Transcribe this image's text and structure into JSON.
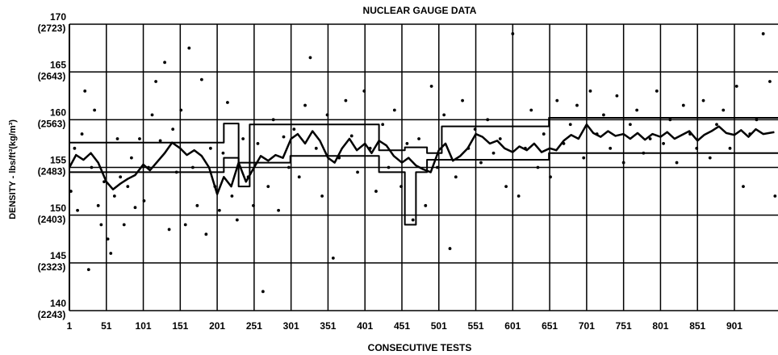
{
  "chart_data": {
    "type": "scatter",
    "title": "NUCLEAR GAUGE DATA",
    "xlabel": "CONSECUTIVE TESTS",
    "ylabel": "DENSITY - lbs/ft³(kg/m³)",
    "xlim": [
      1,
      960
    ],
    "ylim": [
      140,
      170
    ],
    "xticks": [
      1,
      51,
      101,
      151,
      201,
      251,
      301,
      351,
      401,
      451,
      501,
      551,
      601,
      651,
      701,
      751,
      801,
      851,
      901
    ],
    "yticks": [
      140,
      145,
      150,
      155,
      160,
      165,
      170
    ],
    "ytick_sublabels": [
      "(2243)",
      "(2323)",
      "(2403)",
      "(2483)",
      "(2563)",
      "(2643)",
      "(2723)"
    ],
    "grid": true,
    "series": [
      {
        "type": "scatter",
        "color": "#000000",
        "x": [
          3,
          8,
          12,
          18,
          22,
          27,
          31,
          35,
          40,
          44,
          48,
          53,
          57,
          62,
          66,
          70,
          75,
          80,
          85,
          90,
          96,
          102,
          108,
          113,
          118,
          124,
          130,
          136,
          141,
          146,
          152,
          158,
          163,
          168,
          174,
          180,
          186,
          192,
          198,
          204,
          209,
          215,
          221,
          228,
          236,
          243,
          250,
          256,
          263,
          270,
          277,
          284,
          291,
          298,
          305,
          312,
          320,
          327,
          335,
          343,
          350,
          358,
          366,
          375,
          383,
          391,
          400,
          408,
          416,
          425,
          433,
          441,
          450,
          458,
          466,
          474,
          483,
          491,
          499,
          508,
          516,
          524,
          533,
          541,
          550,
          558,
          567,
          575,
          584,
          592,
          601,
          609,
          618,
          626,
          635,
          643,
          652,
          661,
          670,
          679,
          688,
          697,
          706,
          715,
          724,
          733,
          742,
          751,
          760,
          769,
          778,
          787,
          796,
          805,
          814,
          823,
          832,
          841,
          850,
          859,
          868,
          877,
          886,
          895,
          904,
          913,
          922,
          931,
          940,
          949,
          956
        ],
        "values": [
          152.5,
          157,
          150.5,
          158.5,
          163,
          144.3,
          155,
          161,
          151,
          149,
          153.5,
          147.5,
          146,
          152,
          158,
          154,
          149,
          153,
          156,
          150.8,
          158,
          151.5,
          155,
          160.5,
          164,
          157.8,
          166,
          148.5,
          159,
          154.5,
          161,
          149,
          167.5,
          155,
          151,
          164.2,
          148,
          157,
          153,
          150.5,
          156.5,
          161.8,
          152,
          149.5,
          158,
          154,
          151,
          157.5,
          142,
          153,
          160,
          150.5,
          158.2,
          155,
          159,
          154,
          161.5,
          166.5,
          157,
          152,
          160.5,
          145.5,
          156,
          162,
          158.3,
          154.5,
          163,
          157,
          152.5,
          159.5,
          155,
          161,
          153,
          157.5,
          149.5,
          158,
          151,
          163.5,
          155,
          160.5,
          146.5,
          154,
          162,
          157,
          159,
          155.5,
          160,
          156.5,
          158,
          153,
          169,
          152,
          157,
          161,
          155,
          158.5,
          154,
          162,
          157.5,
          159.5,
          161.5,
          156,
          163,
          158.5,
          160.5,
          157,
          162.5,
          155.5,
          159.5,
          161,
          156.5,
          158,
          163,
          157.5,
          160,
          155.5,
          161.5,
          158.5,
          157,
          162,
          156,
          159.5,
          161,
          157,
          163.5,
          153,
          158.5,
          160,
          169,
          164,
          152
        ]
      },
      {
        "type": "line",
        "color": "#000000",
        "width": 2.5,
        "x": [
          1,
          10,
          20,
          30,
          40,
          51,
          60,
          70,
          80,
          90,
          101,
          110,
          120,
          130,
          140,
          151,
          160,
          170,
          180,
          190,
          201,
          210,
          220,
          230,
          240,
          251,
          260,
          270,
          280,
          290,
          301,
          310,
          320,
          330,
          340,
          351,
          360,
          370,
          380,
          390,
          401,
          410,
          420,
          430,
          440,
          451,
          460,
          470,
          480,
          490,
          501,
          510,
          520,
          530,
          540,
          551,
          560,
          570,
          580,
          590,
          601,
          610,
          620,
          630,
          640,
          651,
          660,
          670,
          680,
          690,
          701,
          710,
          720,
          730,
          740,
          751,
          760,
          770,
          780,
          790,
          801,
          810,
          820,
          830,
          840,
          851,
          860,
          870,
          880,
          890,
          901,
          910,
          920,
          930,
          940,
          955
        ],
        "values": [
          155,
          156.3,
          155.8,
          156.5,
          155.5,
          153.5,
          152.7,
          153.3,
          153.8,
          154.2,
          155.3,
          154.7,
          155.6,
          156.5,
          157.6,
          157,
          156.3,
          156.8,
          156.2,
          155,
          152.2,
          154,
          153,
          155.5,
          153.5,
          155,
          156.2,
          155.7,
          156.3,
          156,
          158,
          158.5,
          157.5,
          158.8,
          157.8,
          156,
          155.5,
          157,
          158,
          156.8,
          157.5,
          156.5,
          157.8,
          157.3,
          156.2,
          155.5,
          156,
          155.2,
          154.8,
          154.5,
          156.8,
          157.5,
          155.7,
          156.2,
          157,
          158.5,
          158.2,
          157.5,
          157.8,
          157,
          156.6,
          157.2,
          156.8,
          157.5,
          156.6,
          157,
          156.8,
          157.8,
          158.4,
          158,
          159.5,
          158.6,
          158.2,
          158.8,
          158.3,
          158.5,
          158,
          158.6,
          157.9,
          158.5,
          158.2,
          158.7,
          158,
          158.4,
          158.8,
          157.8,
          158.4,
          158.8,
          159.3,
          158.6,
          158.4,
          158.9,
          158.2,
          159,
          158.5,
          158.7
        ]
      },
      {
        "type": "line",
        "color": "#000000",
        "width": 2,
        "x": [
          1,
          210,
          210,
          230,
          230,
          245,
          245,
          420,
          420,
          455,
          455,
          485,
          485,
          505,
          505,
          650,
          650,
          960
        ],
        "values": [
          157.6,
          157.6,
          159.6,
          159.6,
          153,
          153,
          159.5,
          159.5,
          156.8,
          156.8,
          157.1,
          157.1,
          156.5,
          156.5,
          159.3,
          159.3,
          160.2,
          160.2
        ]
      },
      {
        "type": "line",
        "color": "#000000",
        "width": 2,
        "x": [
          1,
          210,
          210,
          230,
          230,
          300,
          300,
          420,
          420,
          455,
          455,
          470,
          470,
          485,
          485,
          650,
          650,
          960
        ],
        "values": [
          154.5,
          154.5,
          156,
          156,
          155.5,
          155.5,
          156.2,
          156.2,
          154.5,
          154.5,
          149,
          149,
          154.5,
          154.5,
          155.8,
          155.8,
          156.5,
          156.5
        ]
      }
    ]
  }
}
